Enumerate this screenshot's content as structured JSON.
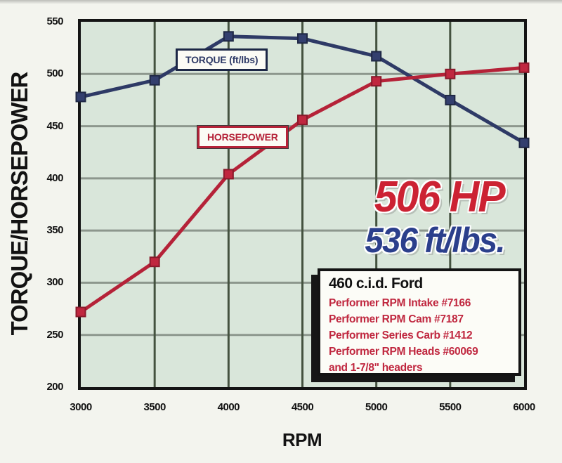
{
  "labels": {
    "y_axis_title": "TORQUE/HORSEPOWER",
    "x_axis_title": "RPM"
  },
  "callout": {
    "hp_text": "506 HP",
    "torque_text": "536 ft/lbs."
  },
  "info_box": {
    "title": "460 c.i.d. Ford",
    "lines": [
      "Performer RPM Intake #7166",
      "Performer RPM Cam #7187",
      "Performer Series Carb #1412",
      "Performer RPM Heads #60069",
      "and 1-7/8\" headers"
    ]
  },
  "colors": {
    "page_bg": "#f3f4ee",
    "plot_bg": "#d9e6da",
    "plot_border": "#141414",
    "grid_horizontal": "#8d978d",
    "grid_vertical": "#44523f",
    "torque_line": "#2e3a66",
    "torque_marker_fill": "#333f6e",
    "torque_marker_edge": "#1f2845",
    "hp_line": "#b52238",
    "hp_marker_fill": "#c0273f",
    "hp_marker_edge": "#8a1a2b",
    "callout_hp_color": "#cc2233",
    "callout_torque_color": "#2b3f8c",
    "tick_label_color": "#121212"
  },
  "chart_data": {
    "type": "line",
    "title": "",
    "xlabel": "RPM",
    "ylabel": "TORQUE/HORSEPOWER",
    "x": [
      3000,
      3500,
      4000,
      4500,
      5000,
      5500,
      6000
    ],
    "x_tick_labels": [
      "3000",
      "3500",
      "4000",
      "4500",
      "5000",
      "5500",
      "6000"
    ],
    "y_tick_labels": [
      "550",
      "500",
      "450",
      "400",
      "350",
      "300",
      "250",
      "200"
    ],
    "xlim": [
      3000,
      6000
    ],
    "ylim": [
      200,
      550
    ],
    "grid": true,
    "legend_position": "boxed labels inside plot",
    "series": [
      {
        "name": "TORQUE (ft/lbs)",
        "color": "#2e3a66",
        "values": [
          478,
          494,
          536,
          534,
          517,
          475,
          434
        ]
      },
      {
        "name": "HORSEPOWER",
        "color": "#b52238",
        "values": [
          272,
          320,
          404,
          456,
          493,
          500,
          506
        ]
      }
    ],
    "annotations": [
      "506 HP peak",
      "536 ft/lbs. peak torque"
    ]
  }
}
